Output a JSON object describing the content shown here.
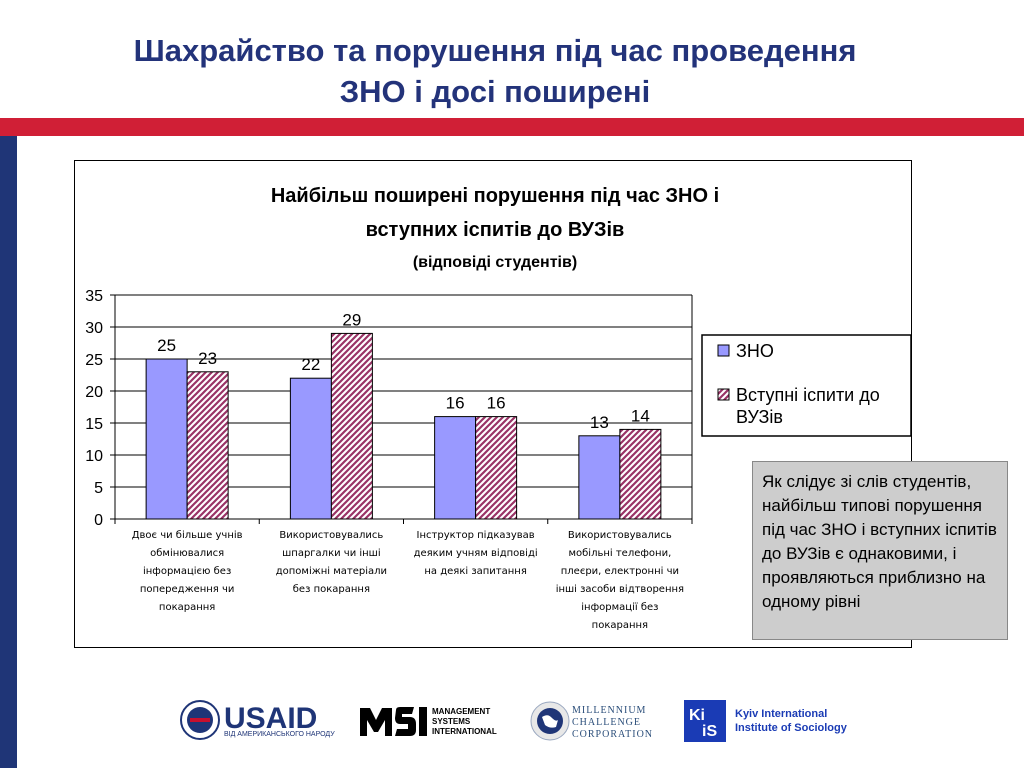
{
  "slide": {
    "title_line1": "Шахрайство та порушення під час проведення",
    "title_line2": "ЗНО і досі поширені"
  },
  "colors": {
    "title": "#23337a",
    "accent_band": "#d01f36",
    "side_band": "#1f3577",
    "series_zno": "#9999ff",
    "series_vuz_pattern": "#993366",
    "note_bg": "#cdcdcd"
  },
  "chart_data": {
    "type": "bar",
    "title_line1": "Найбільш поширені порушення під час ЗНО і",
    "title_line2": "вступних іспитів до ВУЗів",
    "subtitle": "(відповіді студентів)",
    "categories": [
      [
        "Двоє чи більше учнів",
        "обмінювалися",
        "інформацією без",
        "попередження чи",
        "покарання"
      ],
      [
        "Використовувались",
        "шпаргалки чи інші",
        "допоміжні матеріали",
        "без покарання"
      ],
      [
        "Інструктор підказував",
        "деяким учням відповіді",
        "на деякі запитання"
      ],
      [
        "Використовувались",
        "мобільні телефони,",
        "плеєри, електронні чи",
        "інші засоби відтворення",
        "інформації  без",
        "покарання"
      ]
    ],
    "series": [
      {
        "name": "ЗНО",
        "values": [
          25,
          22,
          16,
          13
        ],
        "fill": "solid"
      },
      {
        "name": "Вступні іспити до ВУЗів",
        "values": [
          23,
          29,
          16,
          14
        ],
        "fill": "pattern"
      }
    ],
    "legend_labels": [
      [
        "ЗНО"
      ],
      [
        "Вступні іспити до",
        "ВУЗів"
      ]
    ],
    "ylim": [
      0,
      35
    ],
    "yticks": [
      0,
      5,
      10,
      15,
      20,
      25,
      30,
      35
    ],
    "grid": true,
    "legend": "right"
  },
  "note": {
    "text": "Як слідує зі слів студентів, найбільш типові порушення під час ЗНО і вступних іспитів до ВУЗів є однаковими, і проявляються приблизно на  одному рівні"
  },
  "logos": {
    "usaid": "USAID",
    "usaid_sub": "ВІД АМЕРИКАНСЬКОГО НАРОДУ",
    "msi_lines": [
      "MANAGEMENT",
      "SYSTEMS",
      "INTERNATIONAL"
    ],
    "mcc_lines": [
      "MILLENNIUM",
      "CHALLENGE",
      "CORPORATION"
    ],
    "kiis_lines": [
      "Kyiv International",
      "Institute of Sociology"
    ]
  }
}
